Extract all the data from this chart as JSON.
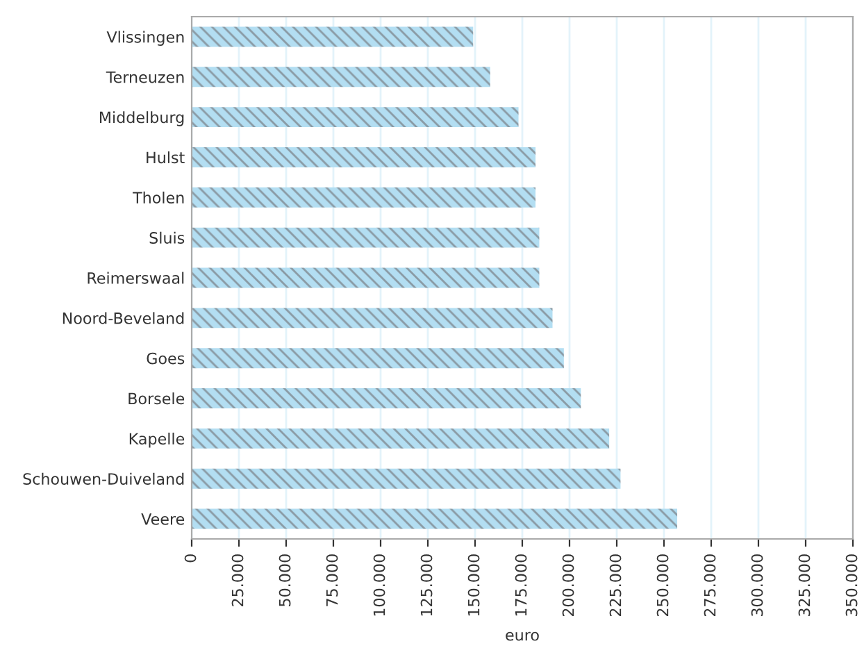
{
  "chart_data": {
    "type": "bar",
    "orientation": "horizontal",
    "xlabel": "euro",
    "categories": [
      "Vlissingen",
      "Terneuzen",
      "Middelburg",
      "Hulst",
      "Tholen",
      "Sluis",
      "Reimerswaal",
      "Noord-Beveland",
      "Goes",
      "Borsele",
      "Kapelle",
      "Schouwen-Duiveland",
      "Veere"
    ],
    "values": [
      149000,
      158000,
      173000,
      182000,
      182000,
      184000,
      184000,
      191000,
      197000,
      206000,
      221000,
      227000,
      257000
    ],
    "color": "#b3def2",
    "xlim": [
      0,
      350000
    ],
    "xticks": [
      0,
      {
        "value": 25000,
        "label": "25.000"
      },
      {
        "value": 50000,
        "label": "50.000"
      },
      {
        "value": 75000,
        "label": "75.000"
      },
      {
        "value": 100000,
        "label": "100.000"
      },
      {
        "value": 125000,
        "label": "125.000"
      },
      {
        "value": 150000,
        "label": "150.000"
      },
      {
        "value": 175000,
        "label": "175.000"
      },
      {
        "value": 200000,
        "label": "200.000"
      },
      {
        "value": 225000,
        "label": "225.000"
      },
      {
        "value": 250000,
        "label": "250.000"
      },
      {
        "value": 275000,
        "label": "275.000"
      },
      {
        "value": 300000,
        "label": "300.000"
      },
      {
        "value": 325000,
        "label": "325.000"
      },
      {
        "value": 350000,
        "label": "350.000"
      }
    ],
    "grid": "x"
  }
}
